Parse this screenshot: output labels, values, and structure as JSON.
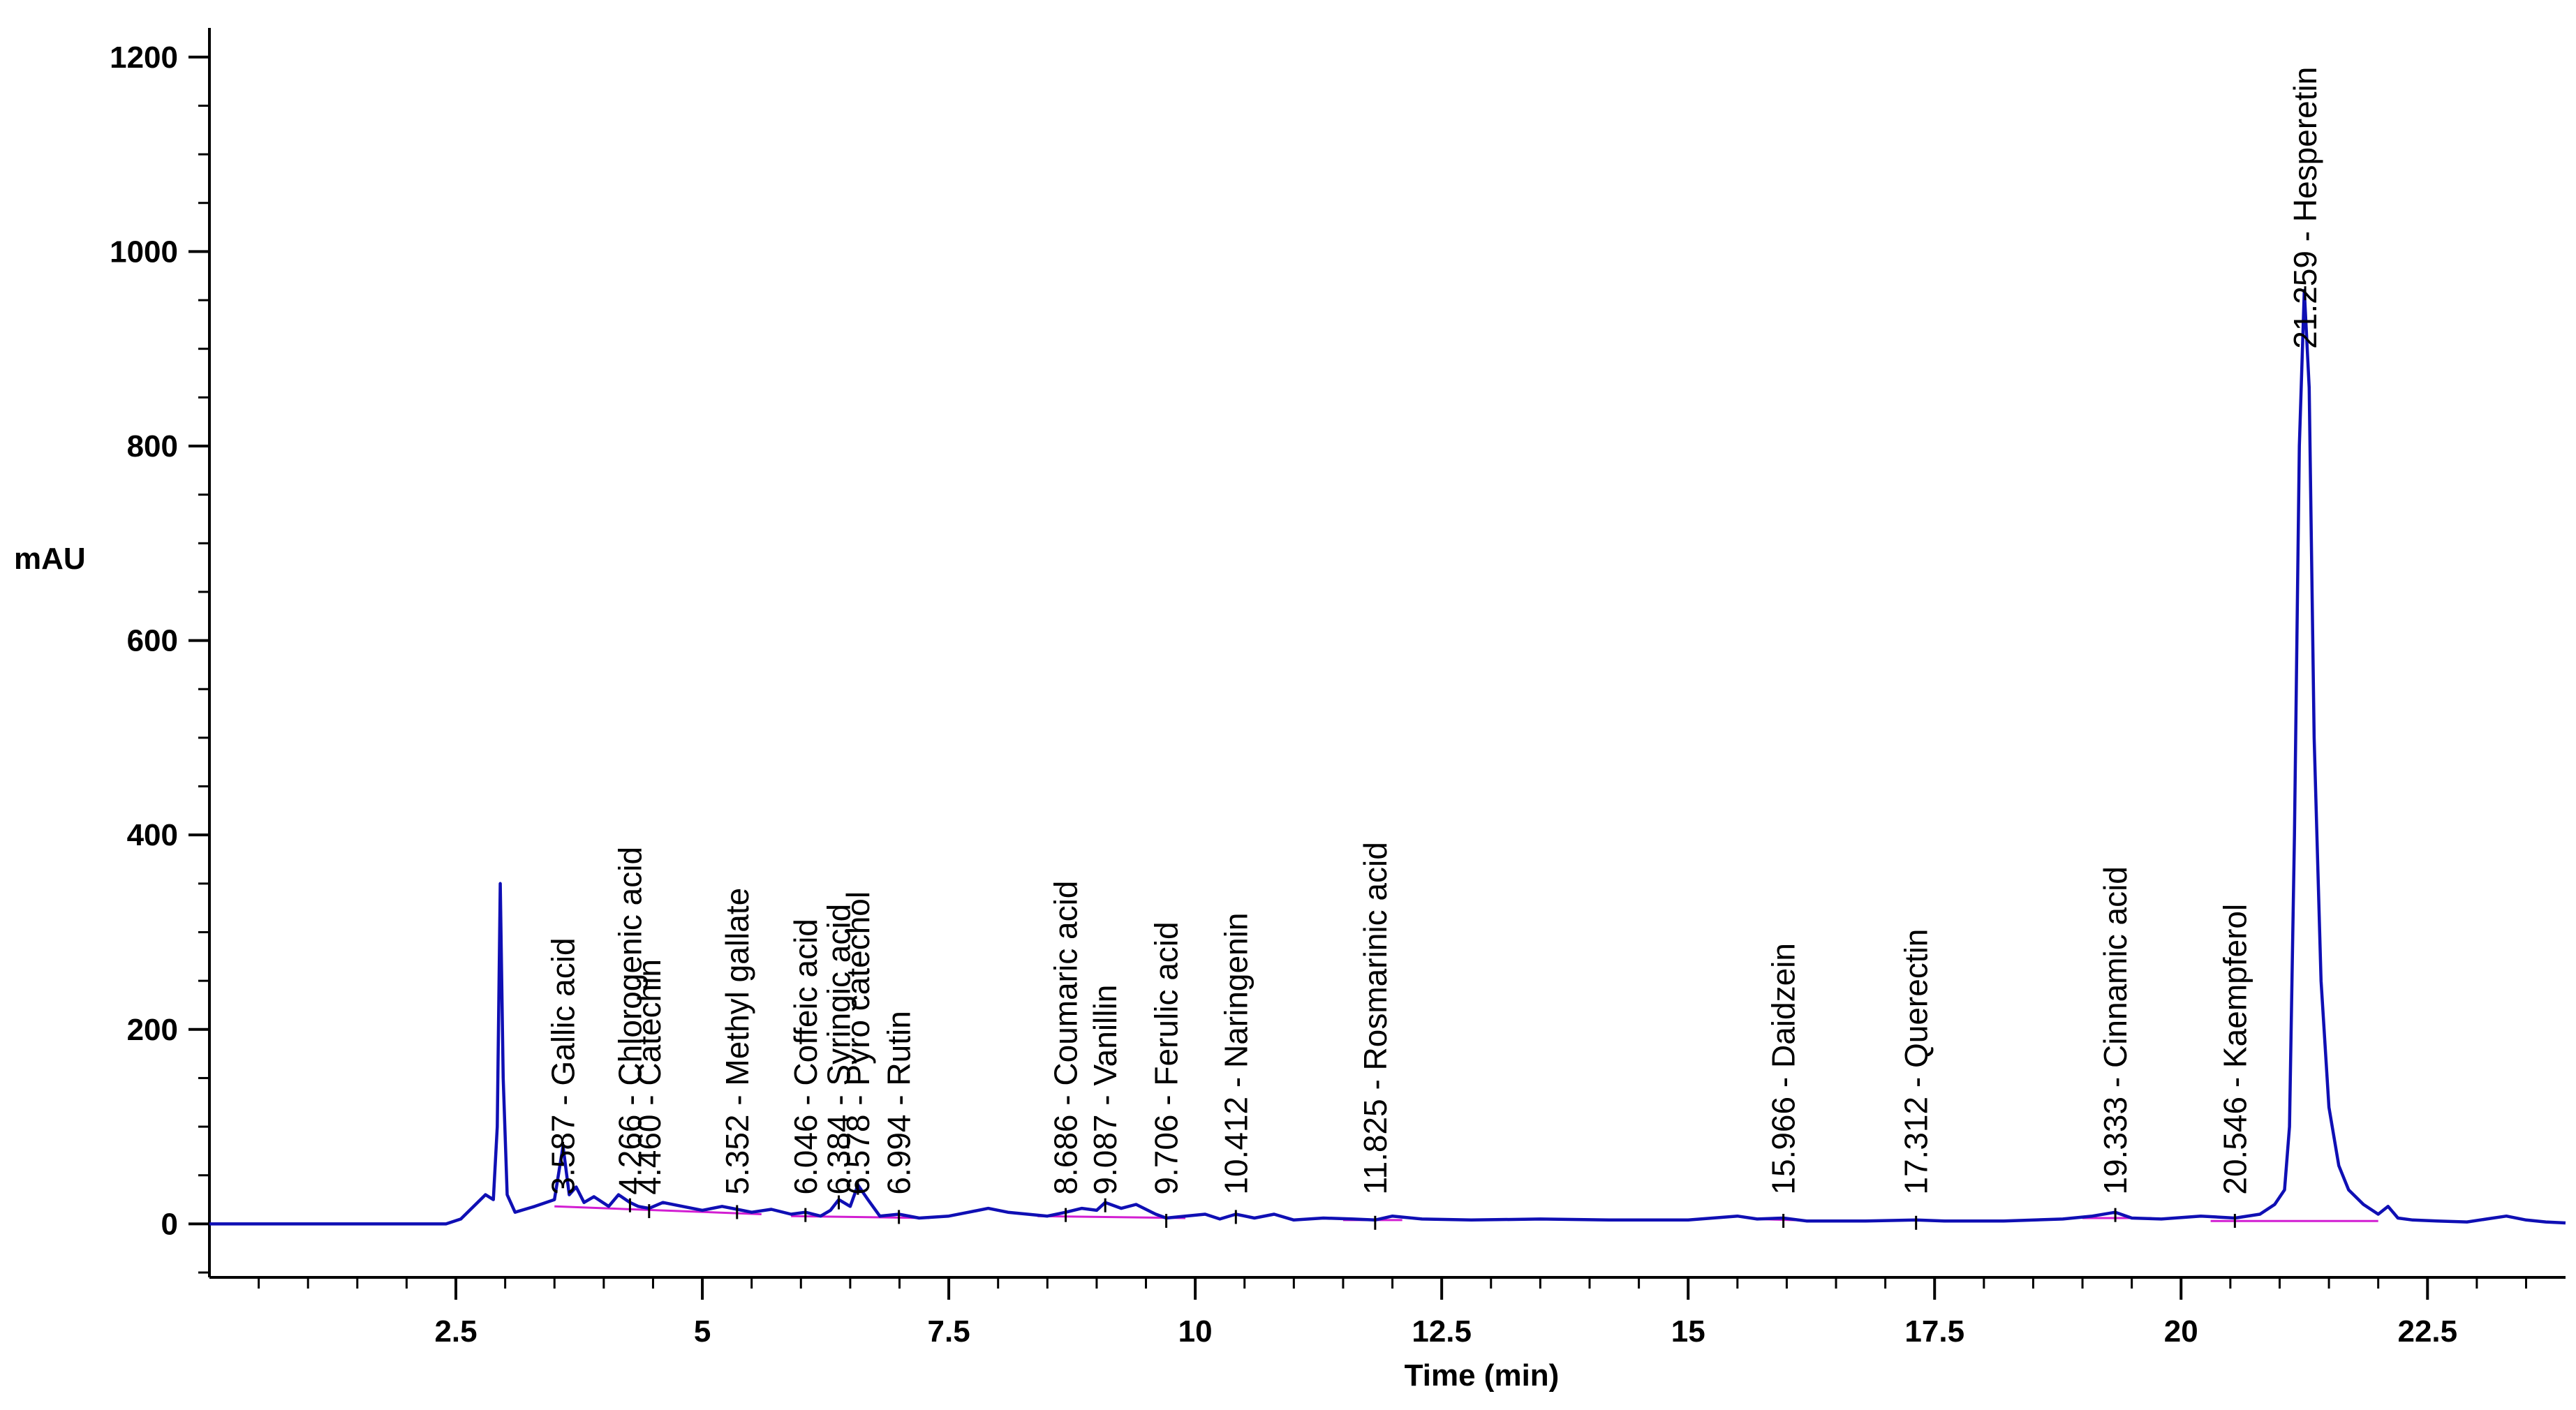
{
  "chart_data": {
    "type": "line",
    "title": "",
    "xlabel": "Time (min)",
    "ylabel": "mAU",
    "xlim": [
      0,
      23.9
    ],
    "ylim": [
      -55,
      1230
    ],
    "xticks": [
      2.5,
      5,
      7.5,
      10,
      12.5,
      15,
      17.5,
      20,
      22.5
    ],
    "xtick_labels": [
      "2.5",
      "5",
      "7.5",
      "10",
      "12.5",
      "15",
      "17.5",
      "20",
      "22.5"
    ],
    "yticks": [
      0,
      200,
      400,
      600,
      800,
      1000,
      1200
    ],
    "ytick_labels": [
      "0",
      "200",
      "400",
      "600",
      "800",
      "1000",
      "1200"
    ],
    "grid": false,
    "series": [
      {
        "name": "chromatogram",
        "color": "#0f0fb4",
        "x": [
          0.0,
          2.4,
          2.55,
          2.7,
          2.8,
          2.88,
          2.92,
          2.95,
          2.98,
          3.02,
          3.1,
          3.3,
          3.5,
          3.587,
          3.65,
          3.72,
          3.8,
          3.9,
          4.05,
          4.15,
          4.266,
          4.35,
          4.46,
          4.6,
          4.8,
          5.0,
          5.2,
          5.352,
          5.5,
          5.7,
          5.9,
          6.046,
          6.2,
          6.3,
          6.384,
          6.5,
          6.578,
          6.68,
          6.8,
          6.994,
          7.2,
          7.5,
          7.7,
          7.9,
          8.1,
          8.3,
          8.5,
          8.686,
          8.85,
          9.0,
          9.087,
          9.25,
          9.4,
          9.6,
          9.706,
          9.9,
          10.1,
          10.25,
          10.412,
          10.6,
          10.8,
          11.0,
          11.3,
          11.6,
          11.825,
          12.0,
          12.3,
          12.8,
          13.5,
          14.2,
          15.0,
          15.5,
          15.7,
          15.966,
          16.2,
          16.8,
          17.312,
          17.6,
          18.2,
          18.8,
          19.1,
          19.333,
          19.5,
          19.8,
          20.2,
          20.546,
          20.8,
          20.95,
          21.05,
          21.1,
          21.15,
          21.2,
          21.25,
          21.3,
          21.35,
          21.42,
          21.5,
          21.6,
          21.7,
          21.85,
          22.0,
          22.1,
          22.2,
          22.35,
          22.6,
          22.9,
          23.1,
          23.3,
          23.5,
          23.7,
          23.9
        ],
        "y": [
          0,
          0,
          5,
          20,
          30,
          25,
          100,
          350,
          150,
          30,
          12,
          18,
          25,
          80,
          30,
          38,
          22,
          28,
          18,
          30,
          22,
          18,
          16,
          22,
          18,
          14,
          18,
          15,
          12,
          15,
          10,
          12,
          8,
          14,
          25,
          18,
          40,
          25,
          8,
          10,
          6,
          8,
          12,
          16,
          12,
          10,
          8,
          12,
          16,
          14,
          22,
          16,
          20,
          10,
          6,
          8,
          10,
          5,
          10,
          6,
          10,
          4,
          6,
          5,
          4,
          8,
          5,
          4,
          5,
          4,
          4,
          8,
          5,
          6,
          3,
          3,
          4,
          3,
          3,
          5,
          8,
          12,
          6,
          5,
          8,
          6,
          10,
          20,
          35,
          100,
          400,
          800,
          960,
          860,
          500,
          250,
          120,
          60,
          35,
          20,
          10,
          18,
          6,
          4,
          3,
          2,
          5,
          8,
          4,
          2,
          1
        ]
      }
    ],
    "peaks": [
      {
        "rt": 3.587,
        "label": "3.587 -  Gallic acid",
        "y": 80
      },
      {
        "rt": 4.266,
        "label": "4.266 - Chlorogenic acid",
        "y": 22
      },
      {
        "rt": 4.46,
        "label": "4.460 -  Catechin",
        "y": 16
      },
      {
        "rt": 5.352,
        "label": "5.352 -  Methyl gallate",
        "y": 15
      },
      {
        "rt": 6.046,
        "label": "6.046 -  Coffeic acid",
        "y": 12
      },
      {
        "rt": 6.384,
        "label": "6.384 - Syringic acid",
        "y": 25
      },
      {
        "rt": 6.578,
        "label": "6.578 - Pyro catechol",
        "y": 40
      },
      {
        "rt": 6.994,
        "label": "6.994 -  Rutin",
        "y": 10
      },
      {
        "rt": 8.686,
        "label": "8.686 -  Coumaric acid",
        "y": 12
      },
      {
        "rt": 9.087,
        "label": "9.087 -  Vanillin",
        "y": 22
      },
      {
        "rt": 9.706,
        "label": "9.706 -  Ferulic acid",
        "y": 6
      },
      {
        "rt": 10.412,
        "label": "10.412 -  Naringenin",
        "y": 10
      },
      {
        "rt": 11.825,
        "label": "11.825 -  Rosmarinic acid",
        "y": 4
      },
      {
        "rt": 15.966,
        "label": "15.966 -  Daidzein",
        "y": 6
      },
      {
        "rt": 17.312,
        "label": "17.312 -  Querectin",
        "y": 4
      },
      {
        "rt": 19.333,
        "label": "19.333 -  Cinnamic acid",
        "y": 12
      },
      {
        "rt": 20.546,
        "label": "20.546 -  Kaempferol",
        "y": 6
      },
      {
        "rt": 21.259,
        "label": "21.259 -  Hesperetin",
        "y": 960
      }
    ],
    "peak_label_bottom_value": 30,
    "hesperetin_label_bottom_value": 900,
    "baseline_color": "#d21ed2"
  }
}
